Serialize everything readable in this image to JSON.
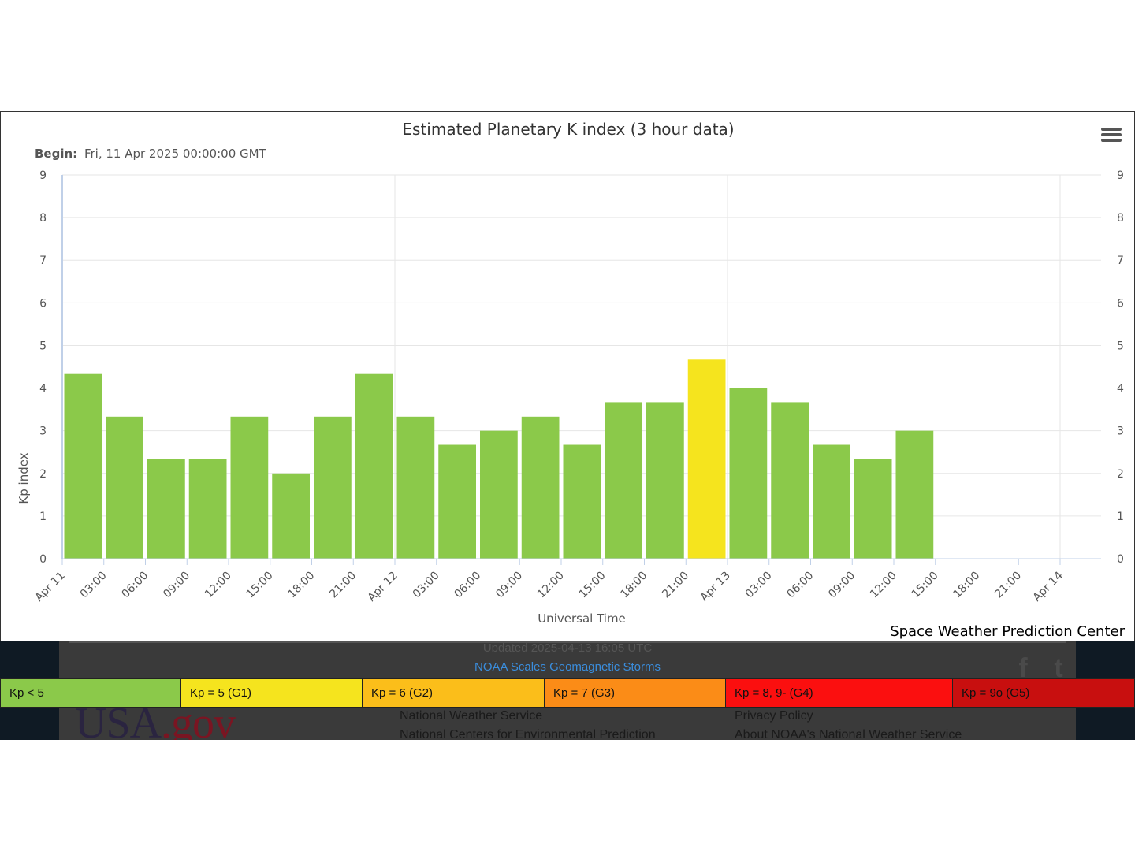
{
  "chart": {
    "title": "Estimated Planetary K index (3 hour data)",
    "begin_label": "Begin:",
    "begin_value": "Fri, 11 Apr 2025 00:00:00 GMT",
    "credit": "Space Weather Prediction Center"
  },
  "chart_data": {
    "type": "bar",
    "title": "Estimated Planetary K index (3 hour data)",
    "xlabel": "Universal Time",
    "ylabel": "Kp index",
    "ylim": [
      0,
      9
    ],
    "yticks": [
      "0",
      "1",
      "2",
      "3",
      "4",
      "5",
      "6",
      "7",
      "8",
      "9"
    ],
    "x_ticks": [
      "Apr 11",
      "03:00",
      "06:00",
      "09:00",
      "12:00",
      "15:00",
      "18:00",
      "21:00",
      "Apr 12",
      "03:00",
      "06:00",
      "09:00",
      "12:00",
      "15:00",
      "18:00",
      "21:00",
      "Apr 13",
      "03:00",
      "06:00",
      "09:00",
      "12:00",
      "15:00",
      "18:00",
      "21:00",
      "Apr 14"
    ],
    "x_start": "2025-04-11 00:00",
    "x_end": "2025-04-14 00:00",
    "interval_hours": 3,
    "values": [
      4.33,
      3.33,
      2.33,
      2.33,
      3.33,
      2.0,
      3.33,
      4.33,
      3.33,
      2.67,
      3.0,
      3.33,
      2.67,
      3.67,
      3.67,
      4.67,
      4.0,
      3.67,
      2.67,
      2.33,
      3.0
    ],
    "grid": true,
    "colors": {
      "below_5": "#8bc94a",
      "g1": "#f5e41e",
      "grid": "#e6e6e6"
    }
  },
  "footer": {
    "updated_text": "Updated 2025-04-13 16:05 UTC",
    "noaa_link": "NOAA Scales Geomagnetic Storms",
    "usagov_usa": "USA",
    "usagov_dot": ".",
    "usagov_gov": "gov",
    "social_facebook": "f",
    "social_twitter": "t",
    "links_left": [
      "National Weather Service",
      "National Centers for Environmental Prediction"
    ],
    "links_right": [
      "Privacy Policy",
      "About NOAA's National Weather Service"
    ]
  },
  "legend": [
    {
      "label": "Kp < 5",
      "color": "#8bc94a"
    },
    {
      "label": "Kp = 5 (G1)",
      "color": "#f5e41e"
    },
    {
      "label": "Kp = 6 (G2)",
      "color": "#fbbe1a"
    },
    {
      "label": "Kp = 7 (G3)",
      "color": "#fb8c17"
    },
    {
      "label": "Kp = 8, 9- (G4)",
      "color": "#fb0f0f"
    },
    {
      "label": "Kp = 9o (G5)",
      "color": "#c80f0f"
    }
  ]
}
